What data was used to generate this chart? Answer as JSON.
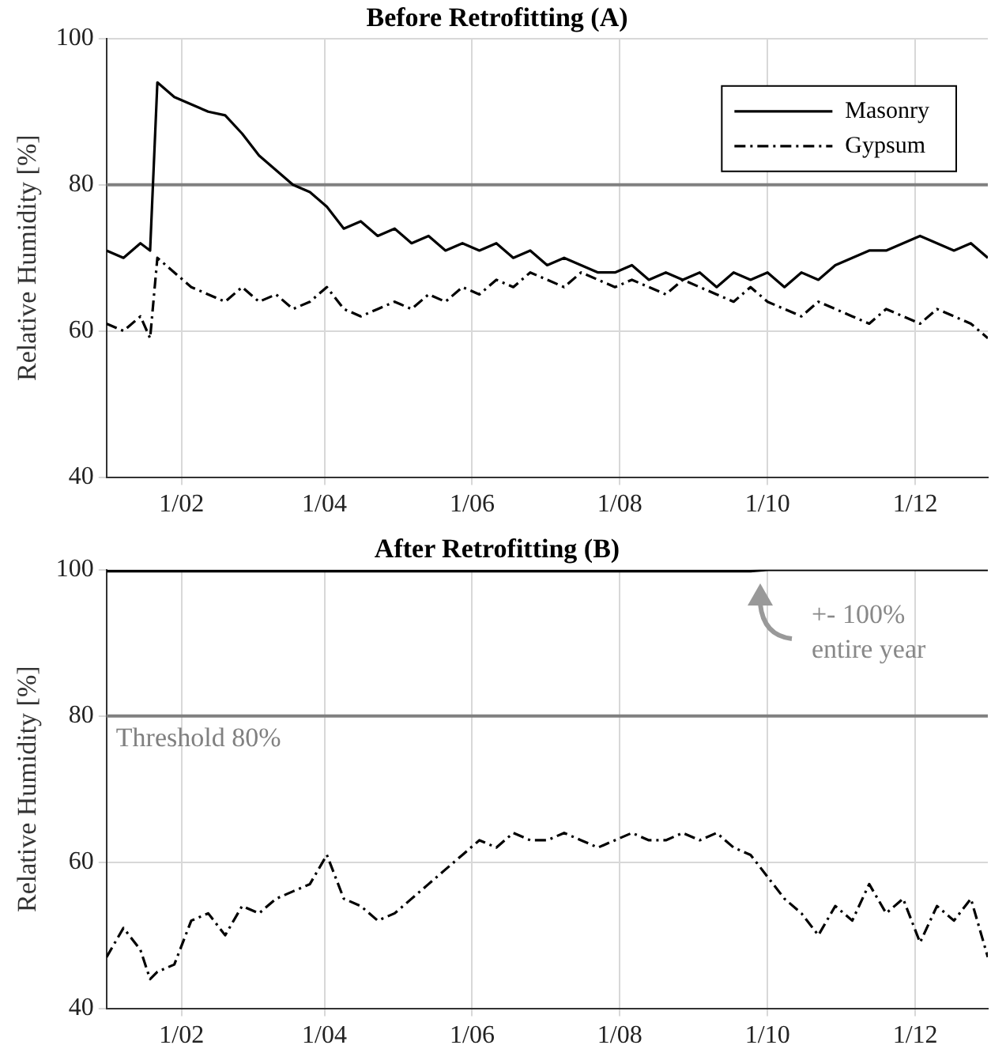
{
  "chart_data": [
    {
      "type": "line",
      "title": "Before Retrofitting (A)",
      "ylabel": "Relative Humidity [%]",
      "x": [
        "--01-01",
        "--01-08",
        "--01-15",
        "--01-19",
        "--01-22",
        "--01-29",
        "--02-05",
        "--02-12",
        "--02-19",
        "--02-26",
        "--03-05",
        "--03-12",
        "--03-19",
        "--03-26",
        "--04-02",
        "--04-09",
        "--04-16",
        "--04-23",
        "--04-30",
        "--05-07",
        "--05-14",
        "--05-21",
        "--05-28",
        "--06-04",
        "--06-11",
        "--06-18",
        "--06-25",
        "--07-02",
        "--07-09",
        "--07-16",
        "--07-23",
        "--07-30",
        "--08-06",
        "--08-13",
        "--08-20",
        "--08-27",
        "--09-03",
        "--09-10",
        "--09-17",
        "--09-24",
        "--10-01",
        "--10-08",
        "--10-15",
        "--10-22",
        "--10-29",
        "--11-05",
        "--11-12",
        "--11-19",
        "--11-26",
        "--12-03",
        "--12-10",
        "--12-17",
        "--12-24",
        "--12-31"
      ],
      "series": [
        {
          "name": "Masonry",
          "color": "#000000",
          "line_style": "solid",
          "values": [
            71,
            70,
            72,
            71,
            94,
            92,
            91,
            90,
            89.5,
            87,
            84,
            82,
            80,
            79,
            77,
            74,
            75,
            73,
            74,
            72,
            73,
            71,
            72,
            71,
            72,
            70,
            71,
            69,
            70,
            69,
            68,
            68,
            69,
            67,
            68,
            67,
            68,
            66,
            68,
            67,
            68,
            66,
            68,
            67,
            69,
            70,
            71,
            71,
            72,
            73,
            72,
            71,
            72,
            70
          ]
        },
        {
          "name": "Gypsum",
          "color": "#000000",
          "line_style": "dashed",
          "values": [
            61,
            60,
            62,
            59,
            70,
            68,
            66,
            65,
            64,
            66,
            64,
            65,
            63,
            64,
            66,
            63,
            62,
            63,
            64,
            63,
            65,
            64,
            66,
            65,
            67,
            66,
            68,
            67,
            66,
            68,
            67,
            66,
            67,
            66,
            65,
            67,
            66,
            65,
            64,
            66,
            64,
            63,
            62,
            64,
            63,
            62,
            61,
            63,
            62,
            61,
            63,
            62,
            61,
            59
          ]
        }
      ],
      "xlim": [
        "--01-01",
        "--12-31"
      ],
      "xticks": [
        {
          "value": "--02-01",
          "label": "1/02"
        },
        {
          "value": "--04-01",
          "label": "1/04"
        },
        {
          "value": "--06-01",
          "label": "1/06"
        },
        {
          "value": "--08-01",
          "label": "1/08"
        },
        {
          "value": "--10-01",
          "label": "1/10"
        },
        {
          "value": "--12-01",
          "label": "1/12"
        }
      ],
      "ylim": [
        40,
        100
      ],
      "yticks": [
        40,
        60,
        80,
        100
      ],
      "grid": true,
      "legend": "top right",
      "marker": "none",
      "ref_lines": [
        {
          "axis": "y",
          "value": 80,
          "color": "#808080"
        }
      ]
    },
    {
      "type": "line",
      "title": "After Retrofitting (B)",
      "ylabel": "Relative Humidity [%]",
      "x": [
        "--01-01",
        "--01-08",
        "--01-15",
        "--01-19",
        "--01-22",
        "--01-29",
        "--02-05",
        "--02-12",
        "--02-19",
        "--02-26",
        "--03-05",
        "--03-12",
        "--03-19",
        "--03-26",
        "--04-02",
        "--04-09",
        "--04-16",
        "--04-23",
        "--04-30",
        "--05-07",
        "--05-14",
        "--05-21",
        "--05-28",
        "--06-04",
        "--06-11",
        "--06-18",
        "--06-25",
        "--07-02",
        "--07-09",
        "--07-16",
        "--07-23",
        "--07-30",
        "--08-06",
        "--08-13",
        "--08-20",
        "--08-27",
        "--09-03",
        "--09-10",
        "--09-17",
        "--09-24",
        "--10-01",
        "--10-08",
        "--10-15",
        "--10-22",
        "--10-29",
        "--11-05",
        "--11-12",
        "--11-19",
        "--11-26",
        "--12-03",
        "--12-10",
        "--12-17",
        "--12-24",
        "--12-31"
      ],
      "series": [
        {
          "color": "#000000",
          "line_style": "solid",
          "values": [
            99.8,
            99.8,
            99.8,
            99.8,
            99.8,
            99.8,
            99.8,
            99.8,
            99.8,
            99.8,
            99.8,
            99.8,
            99.8,
            99.8,
            99.8,
            99.8,
            99.8,
            99.8,
            99.8,
            99.8,
            99.8,
            99.8,
            99.8,
            99.8,
            99.8,
            99.8,
            99.8,
            99.8,
            99.8,
            99.8,
            99.8,
            99.8,
            99.8,
            99.8,
            99.8,
            99.8,
            99.8,
            99.8,
            99.8,
            99.8,
            100,
            100,
            100,
            100,
            100,
            100,
            100,
            100,
            100,
            100,
            100,
            100,
            100,
            100
          ]
        },
        {
          "color": "#000000",
          "line_style": "dashed",
          "values": [
            47,
            51,
            48,
            44,
            45,
            46,
            52,
            53,
            50,
            54,
            53,
            55,
            56,
            57,
            61,
            55,
            54,
            52,
            53,
            55,
            57,
            59,
            61,
            63,
            62,
            64,
            63,
            63,
            64,
            63,
            62,
            63,
            64,
            63,
            63,
            64,
            63,
            64,
            62,
            61,
            58,
            55,
            53,
            50,
            54,
            52,
            57,
            53,
            55,
            49,
            54,
            52,
            55,
            47
          ]
        }
      ],
      "xlim": [
        "--01-01",
        "--12-31"
      ],
      "xticks": [
        {
          "value": "--02-01",
          "label": "1/02"
        },
        {
          "value": "--04-01",
          "label": "1/04"
        },
        {
          "value": "--06-01",
          "label": "1/06"
        },
        {
          "value": "--08-01",
          "label": "1/08"
        },
        {
          "value": "--10-01",
          "label": "1/10"
        },
        {
          "value": "--12-01",
          "label": "1/12"
        }
      ],
      "ylim": [
        40,
        100
      ],
      "yticks": [
        40,
        60,
        80,
        100
      ],
      "grid": true,
      "marker": "none",
      "ref_lines": [
        {
          "axis": "y",
          "value": 80,
          "color": "#808080",
          "label": "Threshold 80%"
        }
      ],
      "annotations": [
        "+- 100% entire year"
      ]
    }
  ]
}
